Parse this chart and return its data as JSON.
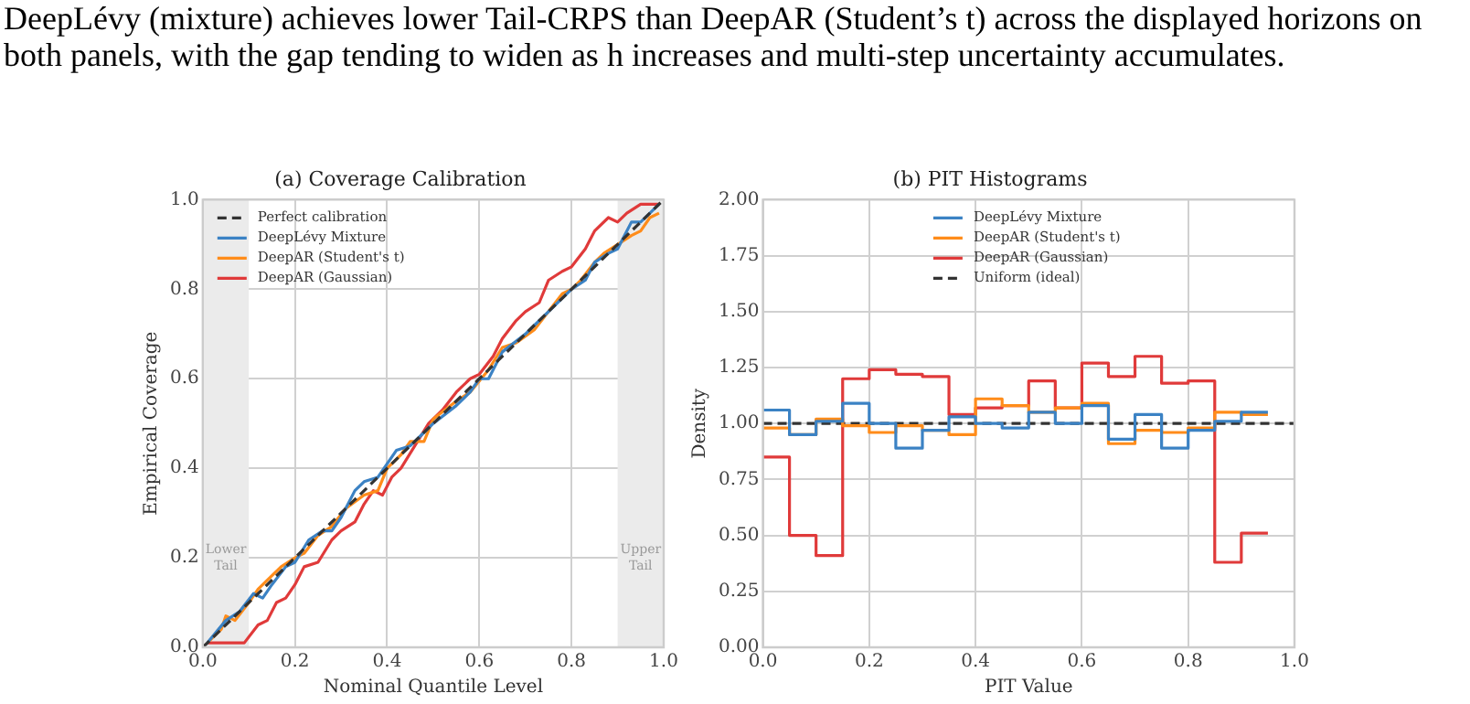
{
  "chart_data": [
    {
      "type": "line",
      "title": "(a) Coverage Calibration",
      "xlabel": "Nominal Quantile Level",
      "ylabel": "Empirical Coverage",
      "annotations": [
        "DeepLévy (mixture) achieves lower Tail-CRPS than DeepAR (Student’s t) across the displayed horizons on both panels, with the gap tending to widen as h increases and multi-step uncertainty accumulates."
      ],
      "xlim": [
        0,
        1
      ],
      "ylim": [
        0,
        1
      ],
      "xticks": [
        {
          "value": 0,
          "label": "0.0"
        },
        {
          "value": 0.2,
          "label": "0.2"
        },
        {
          "value": 0.4,
          "label": "0.4"
        },
        {
          "value": 0.6,
          "label": "0.6"
        },
        {
          "value": 0.8,
          "label": "0.8"
        },
        {
          "value": 1,
          "label": "1.0"
        }
      ],
      "yticks": [
        {
          "value": 0,
          "label": "0.0"
        },
        {
          "value": 0.2,
          "label": "0.2"
        },
        {
          "value": 0.4,
          "label": "0.4"
        },
        {
          "value": 0.6,
          "label": "0.6"
        },
        {
          "value": 0.8,
          "label": "0.8"
        },
        {
          "value": 1,
          "label": "1.0"
        }
      ],
      "grid": true,
      "legend": "top left",
      "bands": [
        {
          "axis": "x",
          "from": 0,
          "to": 0.1,
          "label": "Lower Tail",
          "color": "#ebebeb"
        },
        {
          "axis": "x",
          "from": 0.9,
          "to": 1,
          "label": "Upper Tail",
          "color": "#ebebeb"
        }
      ],
      "series": [
        {
          "name": "Perfect calibration",
          "color": "#333333",
          "line_style": "dashed",
          "x": [
            0,
            1
          ],
          "values": [
            0,
            1
          ]
        },
        {
          "name": "DeepLévy Mixture",
          "color": "#3b82c4",
          "x": [
            0.01,
            0.05,
            0.08,
            0.11,
            0.13,
            0.15,
            0.18,
            0.2,
            0.23,
            0.26,
            0.28,
            0.3,
            0.33,
            0.35,
            0.38,
            0.42,
            0.45,
            0.48,
            0.5,
            0.55,
            0.58,
            0.6,
            0.62,
            0.65,
            0.7,
            0.72,
            0.75,
            0.78,
            0.8,
            0.83,
            0.85,
            0.88,
            0.9,
            0.93,
            0.95,
            0.97,
            0.99
          ],
          "values": [
            0.01,
            0.06,
            0.08,
            0.12,
            0.11,
            0.14,
            0.18,
            0.19,
            0.24,
            0.26,
            0.26,
            0.29,
            0.35,
            0.37,
            0.38,
            0.44,
            0.45,
            0.48,
            0.5,
            0.54,
            0.57,
            0.6,
            0.6,
            0.66,
            0.7,
            0.72,
            0.75,
            0.78,
            0.8,
            0.82,
            0.86,
            0.88,
            0.89,
            0.95,
            0.95,
            0.97,
            0.99
          ]
        },
        {
          "name": "DeepAR (Student's t)",
          "color": "#ff8c1a",
          "x": [
            0.01,
            0.04,
            0.05,
            0.07,
            0.1,
            0.12,
            0.15,
            0.17,
            0.2,
            0.22,
            0.25,
            0.28,
            0.31,
            0.35,
            0.38,
            0.4,
            0.43,
            0.45,
            0.48,
            0.5,
            0.55,
            0.58,
            0.62,
            0.65,
            0.68,
            0.72,
            0.75,
            0.78,
            0.8,
            0.82,
            0.85,
            0.87,
            0.9,
            0.93,
            0.95,
            0.97,
            0.99
          ],
          "values": [
            0.01,
            0.04,
            0.07,
            0.06,
            0.1,
            0.13,
            0.16,
            0.18,
            0.2,
            0.21,
            0.25,
            0.27,
            0.31,
            0.34,
            0.35,
            0.4,
            0.43,
            0.46,
            0.46,
            0.51,
            0.55,
            0.57,
            0.62,
            0.67,
            0.68,
            0.71,
            0.75,
            0.79,
            0.8,
            0.82,
            0.86,
            0.88,
            0.9,
            0.92,
            0.93,
            0.96,
            0.97
          ]
        },
        {
          "name": "DeepAR (Gaussian)",
          "color": "#e03a3a",
          "x": [
            0.01,
            0.05,
            0.09,
            0.12,
            0.14,
            0.16,
            0.18,
            0.2,
            0.22,
            0.25,
            0.28,
            0.3,
            0.33,
            0.35,
            0.37,
            0.39,
            0.41,
            0.43,
            0.46,
            0.49,
            0.52,
            0.55,
            0.58,
            0.6,
            0.63,
            0.65,
            0.68,
            0.7,
            0.73,
            0.75,
            0.78,
            0.8,
            0.83,
            0.85,
            0.88,
            0.9,
            0.92,
            0.95,
            0.99
          ],
          "values": [
            0.01,
            0.01,
            0.01,
            0.05,
            0.06,
            0.1,
            0.11,
            0.14,
            0.18,
            0.19,
            0.24,
            0.26,
            0.28,
            0.32,
            0.35,
            0.34,
            0.38,
            0.4,
            0.45,
            0.5,
            0.53,
            0.57,
            0.6,
            0.61,
            0.65,
            0.69,
            0.73,
            0.75,
            0.77,
            0.82,
            0.84,
            0.85,
            0.89,
            0.93,
            0.96,
            0.95,
            0.97,
            0.99,
            0.99
          ]
        }
      ]
    },
    {
      "type": "histogram",
      "title": "(b) PIT Histograms",
      "xlabel": "PIT Value",
      "ylabel": "Density",
      "xlim": [
        0,
        1
      ],
      "ylim": [
        0,
        2
      ],
      "xticks": [
        {
          "value": 0,
          "label": "0.0"
        },
        {
          "value": 0.2,
          "label": "0.2"
        },
        {
          "value": 0.4,
          "label": "0.4"
        },
        {
          "value": 0.6,
          "label": "0.6"
        },
        {
          "value": 0.8,
          "label": "0.8"
        },
        {
          "value": 1,
          "label": "1.0"
        }
      ],
      "yticks": [
        {
          "value": 0,
          "label": "0.00"
        },
        {
          "value": 0.25,
          "label": "0.25"
        },
        {
          "value": 0.5,
          "label": "0.50"
        },
        {
          "value": 0.75,
          "label": "0.75"
        },
        {
          "value": 1,
          "label": "1.00"
        },
        {
          "value": 1.25,
          "label": "1.25"
        },
        {
          "value": 1.5,
          "label": "1.50"
        },
        {
          "value": 1.75,
          "label": "1.75"
        },
        {
          "value": 2,
          "label": "2.00"
        }
      ],
      "grid": true,
      "legend": "top",
      "bins": [
        0,
        0.05,
        0.1,
        0.15,
        0.2,
        0.25,
        0.3,
        0.35,
        0.4,
        0.45,
        0.5,
        0.55,
        0.6,
        0.65,
        0.7,
        0.75,
        0.8,
        0.85,
        0.9,
        0.95
      ],
      "series": [
        {
          "name": "DeepLévy Mixture",
          "color": "#3b82c4",
          "values": [
            1.06,
            0.95,
            1.01,
            1.09,
            1.0,
            0.89,
            0.97,
            1.03,
            1.0,
            0.98,
            1.05,
            1.0,
            1.08,
            0.93,
            1.04,
            0.89,
            0.97,
            1.01,
            1.05
          ]
        },
        {
          "name": "DeepAR (Student's t)",
          "color": "#ff8c1a",
          "values": [
            0.98,
            0.95,
            1.02,
            0.99,
            0.96,
            0.99,
            0.97,
            0.95,
            1.11,
            1.08,
            1.05,
            1.07,
            1.09,
            0.91,
            0.97,
            0.96,
            0.98,
            1.05,
            1.04
          ]
        },
        {
          "name": "DeepAR (Gaussian)",
          "color": "#e03a3a",
          "values": [
            0.85,
            0.5,
            0.41,
            1.2,
            1.24,
            1.22,
            1.21,
            1.04,
            1.07,
            1.08,
            1.19,
            1.07,
            1.27,
            1.21,
            1.3,
            1.18,
            1.19,
            0.38,
            0.51
          ]
        },
        {
          "name": "Uniform (ideal)",
          "type": "line",
          "color": "#333333",
          "line_style": "dashed",
          "x": [
            0,
            1
          ],
          "values": [
            1,
            1
          ]
        }
      ]
    }
  ]
}
